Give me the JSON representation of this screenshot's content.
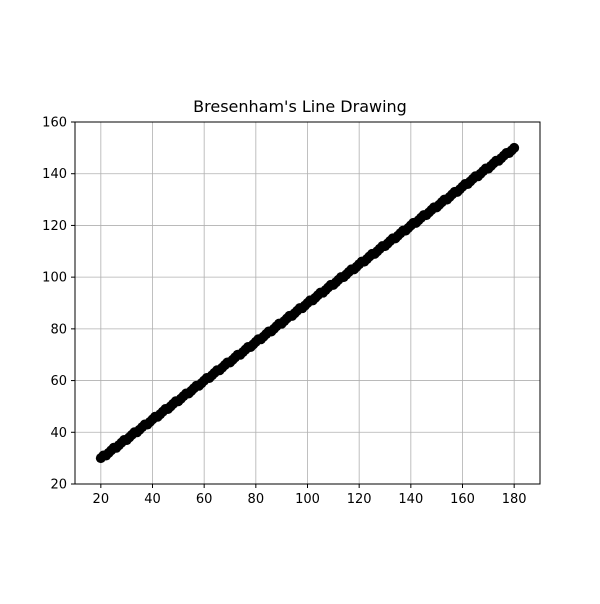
{
  "chart_data": {
    "type": "scatter",
    "title": "Bresenham's Line Drawing",
    "xlabel": "",
    "ylabel": "",
    "xlim": [
      10,
      190
    ],
    "ylim": [
      20,
      160
    ],
    "x_ticks": [
      20,
      40,
      60,
      80,
      100,
      120,
      140,
      160,
      180
    ],
    "y_ticks": [
      20,
      40,
      60,
      80,
      100,
      120,
      140,
      160
    ],
    "grid": true,
    "marker_color": "#000000",
    "line_start": [
      20,
      30
    ],
    "line_end": [
      180,
      150
    ],
    "step": 1
  }
}
